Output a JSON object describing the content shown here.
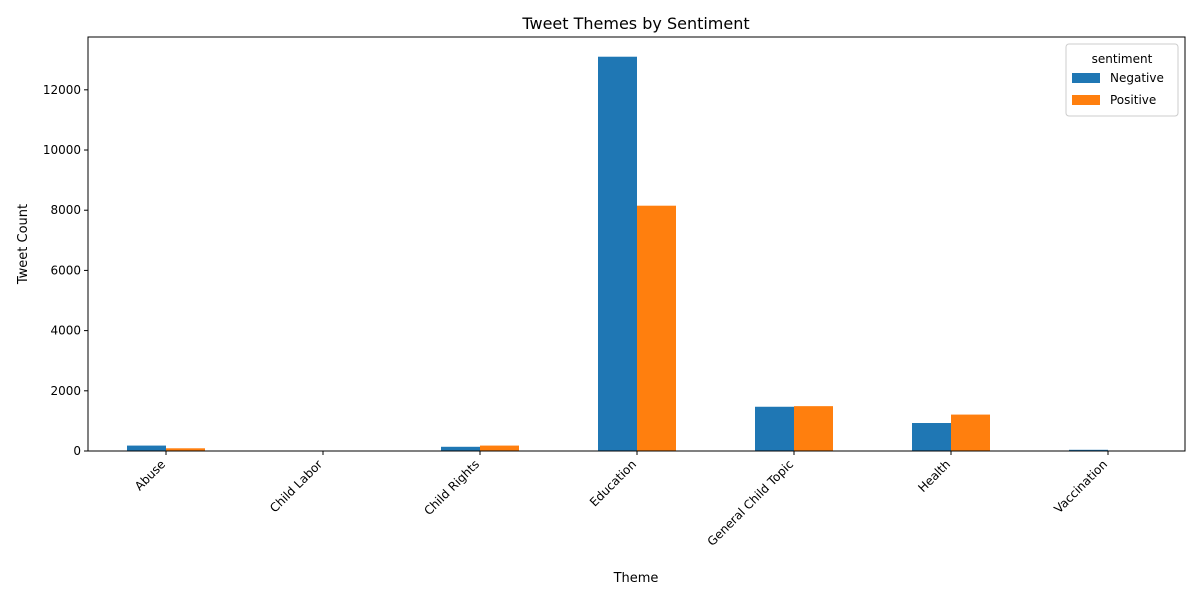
{
  "chart_data": {
    "type": "bar",
    "title": "Tweet Themes by Sentiment",
    "xlabel": "Theme",
    "ylabel": "Tweet Count",
    "categories": [
      "Abuse",
      "Child Labor",
      "Child Rights",
      "Education",
      "General Child Topic",
      "Health",
      "Vaccination"
    ],
    "series": [
      {
        "name": "Negative",
        "color": "#1f77b4",
        "values": [
          180,
          5,
          140,
          13100,
          1470,
          930,
          40
        ]
      },
      {
        "name": "Positive",
        "color": "#ff7f0e",
        "values": [
          90,
          3,
          180,
          8150,
          1490,
          1210,
          12
        ]
      }
    ],
    "ylim": [
      0,
      13755
    ],
    "yticks": [
      0,
      2000,
      4000,
      6000,
      8000,
      10000,
      12000
    ],
    "xtick_rotation": 45,
    "legend": {
      "title": "sentiment",
      "placement": "top-right"
    },
    "grid": false
  }
}
